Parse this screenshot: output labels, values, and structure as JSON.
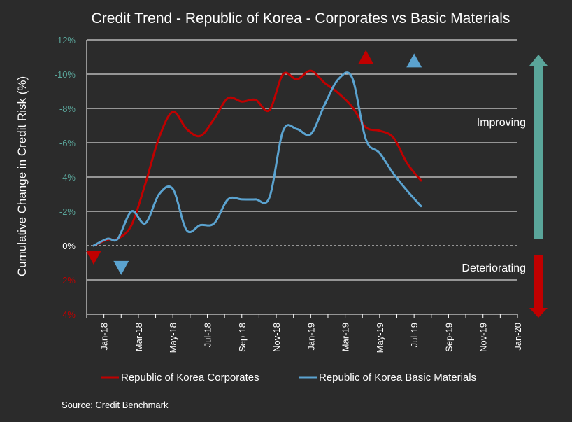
{
  "chart_data": {
    "type": "line",
    "title": "Credit Trend - Republic of Korea  - Corporates vs Basic Materials",
    "ylabel": "Cumulative Change in Credit Risk (%)",
    "xlabel": "",
    "ylim": [
      -12,
      4
    ],
    "yticks": [
      {
        "value": -12,
        "label": "-12%"
      },
      {
        "value": -10,
        "label": "-10%"
      },
      {
        "value": -8,
        "label": "-8%"
      },
      {
        "value": -6,
        "label": "-6%"
      },
      {
        "value": -4,
        "label": "-4%"
      },
      {
        "value": -2,
        "label": "-2%"
      },
      {
        "value": 0,
        "label": "0%"
      },
      {
        "value": 2,
        "label": "2%"
      },
      {
        "value": 4,
        "label": "4%"
      }
    ],
    "xlim": [
      0,
      25
    ],
    "xticks": [
      {
        "value": 1,
        "label": "Jan-18"
      },
      {
        "value": 3,
        "label": "Mar-18"
      },
      {
        "value": 5,
        "label": "May-18"
      },
      {
        "value": 7,
        "label": "Jul-18"
      },
      {
        "value": 9,
        "label": "Sep-18"
      },
      {
        "value": 11,
        "label": "Nov-18"
      },
      {
        "value": 13,
        "label": "Jan-19"
      },
      {
        "value": 15,
        "label": "Mar-19"
      },
      {
        "value": 17,
        "label": "May-19"
      },
      {
        "value": 19,
        "label": "Jul-19"
      },
      {
        "value": 21,
        "label": "Sep-19"
      },
      {
        "value": 23,
        "label": "Nov-19"
      },
      {
        "value": 25,
        "label": "Jan-20"
      }
    ],
    "series": [
      {
        "name": "Republic of Korea Corporates",
        "color": "#c00000",
        "points": [
          [
            0.4,
            0
          ],
          [
            1.2,
            -0.35
          ],
          [
            1.8,
            -0.4
          ],
          [
            2.6,
            -1.2
          ],
          [
            3.4,
            -3.6
          ],
          [
            4.2,
            -6.3
          ],
          [
            5.0,
            -7.8
          ],
          [
            5.8,
            -6.8
          ],
          [
            6.6,
            -6.4
          ],
          [
            7.4,
            -7.4
          ],
          [
            8.2,
            -8.6
          ],
          [
            9.0,
            -8.4
          ],
          [
            9.8,
            -8.5
          ],
          [
            10.6,
            -7.9
          ],
          [
            11.4,
            -10.0
          ],
          [
            12.2,
            -9.7
          ],
          [
            13.0,
            -10.2
          ],
          [
            13.8,
            -9.5
          ],
          [
            14.6,
            -8.9
          ],
          [
            15.4,
            -8.1
          ],
          [
            16.2,
            -6.9
          ],
          [
            17.0,
            -6.7
          ],
          [
            17.8,
            -6.3
          ],
          [
            18.6,
            -4.8
          ],
          [
            19.4,
            -3.8
          ]
        ]
      },
      {
        "name": "Republic of Korea Basic Materials",
        "color": "#5ba3d0",
        "points": [
          [
            0.4,
            0
          ],
          [
            1.2,
            -0.4
          ],
          [
            1.8,
            -0.4
          ],
          [
            2.6,
            -2.0
          ],
          [
            3.4,
            -1.3
          ],
          [
            4.2,
            -3.0
          ],
          [
            5.0,
            -3.3
          ],
          [
            5.8,
            -0.9
          ],
          [
            6.6,
            -1.2
          ],
          [
            7.4,
            -1.3
          ],
          [
            8.2,
            -2.7
          ],
          [
            9.0,
            -2.7
          ],
          [
            9.8,
            -2.7
          ],
          [
            10.6,
            -2.8
          ],
          [
            11.4,
            -6.7
          ],
          [
            12.2,
            -6.8
          ],
          [
            13.0,
            -6.5
          ],
          [
            13.8,
            -8.2
          ],
          [
            14.6,
            -9.7
          ],
          [
            15.4,
            -9.8
          ],
          [
            16.2,
            -6.2
          ],
          [
            17.0,
            -5.4
          ],
          [
            17.8,
            -4.2
          ],
          [
            18.6,
            -3.2
          ],
          [
            19.4,
            -2.3
          ]
        ]
      }
    ],
    "markers": [
      {
        "series": 0,
        "direction": "down",
        "x": 0.4,
        "y": 0.7,
        "color": "#c00000"
      },
      {
        "series": 1,
        "direction": "down",
        "x": 2.0,
        "y": 1.3,
        "color": "#5ba3d0"
      },
      {
        "series": 0,
        "direction": "up",
        "x": 16.2,
        "y": -11.0,
        "color": "#c00000"
      },
      {
        "series": 1,
        "direction": "up",
        "x": 19.0,
        "y": -10.8,
        "color": "#5ba3d0"
      }
    ],
    "annotations": {
      "improving": "Improving",
      "deteriorating": "Deteriorating",
      "improving_color": "#5aa59a",
      "deteriorating_color": "#c00000"
    },
    "legend_position": "bottom",
    "source": "Source: Credit Benchmark",
    "colors": {
      "background": "#2b2b2b",
      "grid": "#ffffff",
      "negative_tick": "#5aa59a",
      "positive_tick": "#c00000"
    }
  }
}
